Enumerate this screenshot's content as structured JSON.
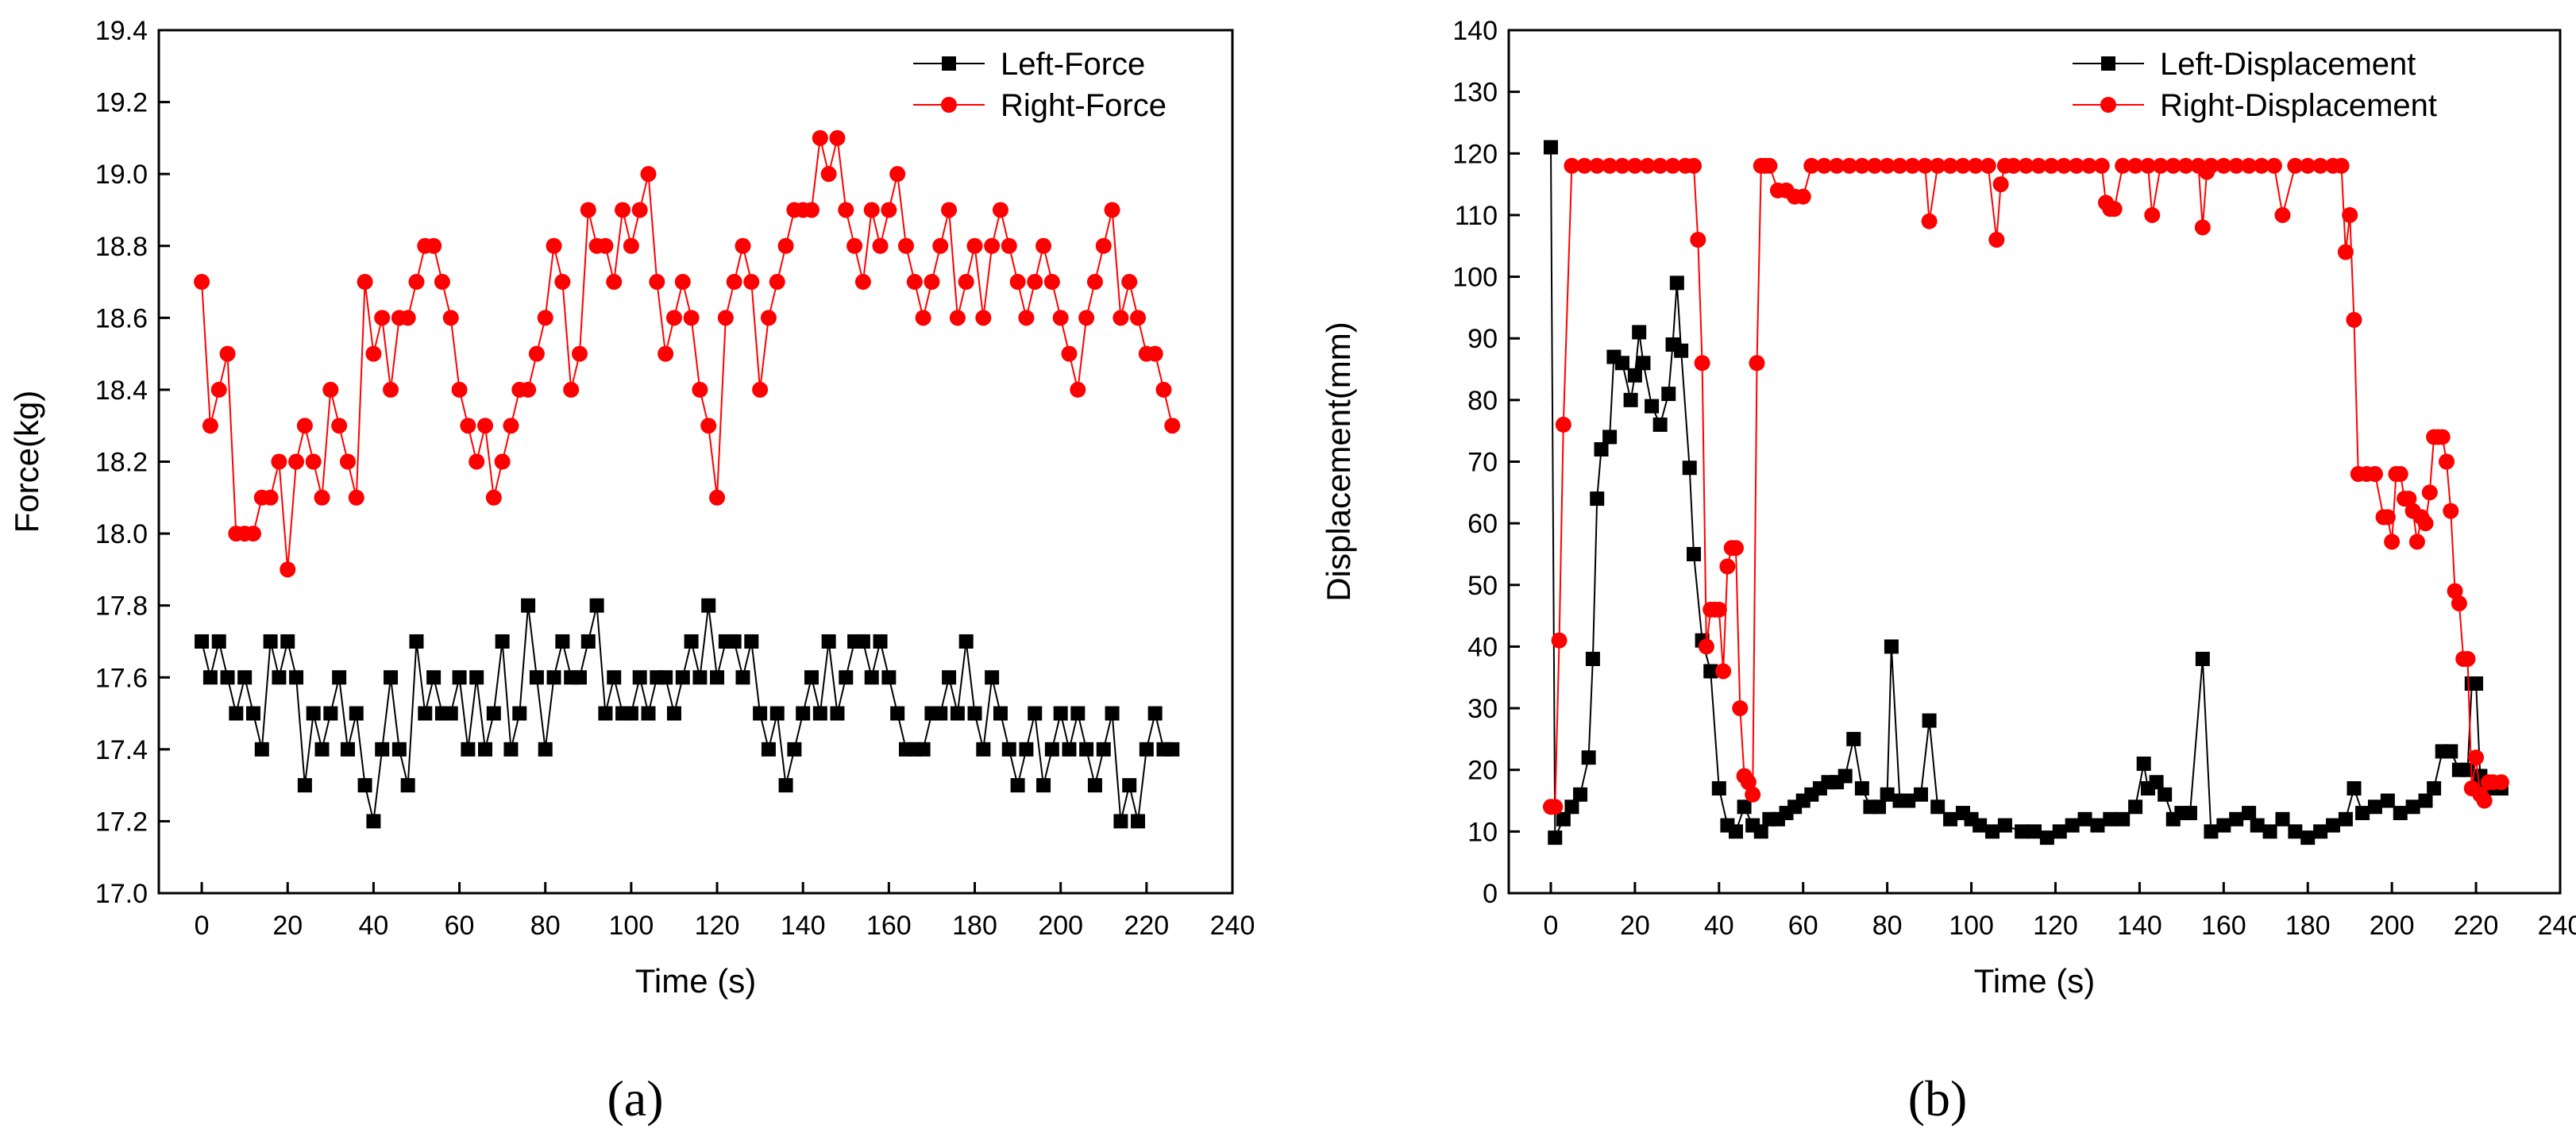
{
  "chart_data": [
    {
      "type": "line",
      "panel_label": "(a)",
      "xlabel": "Time (s)",
      "ylabel": "Force(kg)",
      "xlim": [
        -10,
        240
      ],
      "ylim": [
        17.0,
        19.4
      ],
      "xticks": [
        "0",
        "20",
        "40",
        "60",
        "80",
        "100",
        "120",
        "140",
        "160",
        "180",
        "200",
        "220",
        "240"
      ],
      "yticks": [
        "17.0",
        "17.2",
        "17.4",
        "17.6",
        "17.8",
        "18.0",
        "18.2",
        "18.4",
        "18.6",
        "18.8",
        "19.0",
        "19.2",
        "19.4"
      ],
      "legend_position": "top-right",
      "series": [
        {
          "name": "Left-Force",
          "marker": "square",
          "color": "#000000",
          "x": [
            0,
            2,
            4,
            6,
            8,
            10,
            12,
            14,
            16,
            18,
            20,
            22,
            24,
            26,
            28,
            30,
            32,
            34,
            36,
            38,
            40,
            42,
            44,
            46,
            48,
            50,
            52,
            54,
            56,
            58,
            60,
            62,
            64,
            66,
            68,
            70,
            72,
            74,
            76,
            78,
            80,
            82,
            84,
            86,
            88,
            90,
            92,
            94,
            96,
            98,
            100,
            102,
            104,
            106,
            108,
            110,
            112,
            114,
            116,
            118,
            120,
            122,
            124,
            126,
            128,
            130,
            132,
            134,
            136,
            138,
            140,
            142,
            144,
            146,
            148,
            150,
            152,
            154,
            156,
            158,
            160,
            162,
            164,
            166,
            168,
            170,
            172,
            174,
            176,
            178,
            180,
            182,
            184,
            186,
            188,
            190,
            192,
            194,
            196,
            198,
            200,
            202,
            204,
            206,
            208,
            210,
            212,
            214,
            216,
            218,
            220,
            222,
            224,
            226
          ],
          "y": [
            17.7,
            17.6,
            17.7,
            17.6,
            17.5,
            17.6,
            17.5,
            17.4,
            17.7,
            17.6,
            17.7,
            17.6,
            17.3,
            17.5,
            17.4,
            17.5,
            17.6,
            17.4,
            17.5,
            17.3,
            17.2,
            17.4,
            17.6,
            17.4,
            17.3,
            17.7,
            17.5,
            17.6,
            17.5,
            17.5,
            17.6,
            17.4,
            17.6,
            17.4,
            17.5,
            17.7,
            17.4,
            17.5,
            17.8,
            17.6,
            17.4,
            17.6,
            17.7,
            17.6,
            17.6,
            17.7,
            17.8,
            17.5,
            17.6,
            17.5,
            17.5,
            17.6,
            17.5,
            17.6,
            17.6,
            17.5,
            17.6,
            17.7,
            17.6,
            17.8,
            17.6,
            17.7,
            17.7,
            17.6,
            17.7,
            17.5,
            17.4,
            17.5,
            17.3,
            17.4,
            17.5,
            17.6,
            17.5,
            17.7,
            17.5,
            17.6,
            17.7,
            17.7,
            17.6,
            17.7,
            17.6,
            17.5,
            17.4,
            17.4,
            17.4,
            17.5,
            17.5,
            17.6,
            17.5,
            17.7,
            17.5,
            17.4,
            17.6,
            17.5,
            17.4,
            17.3,
            17.4,
            17.5,
            17.3,
            17.4,
            17.5,
            17.4,
            17.5,
            17.4,
            17.3,
            17.4,
            17.5,
            17.2,
            17.3,
            17.2,
            17.4,
            17.5,
            17.4,
            17.4
          ]
        },
        {
          "name": "Right-Force",
          "marker": "circle",
          "color": "#ff0000",
          "x": [
            0,
            2,
            4,
            6,
            8,
            10,
            12,
            14,
            16,
            18,
            20,
            22,
            24,
            26,
            28,
            30,
            32,
            34,
            36,
            38,
            40,
            42,
            44,
            46,
            48,
            50,
            52,
            54,
            56,
            58,
            60,
            62,
            64,
            66,
            68,
            70,
            72,
            74,
            76,
            78,
            80,
            82,
            84,
            86,
            88,
            90,
            92,
            94,
            96,
            98,
            100,
            102,
            104,
            106,
            108,
            110,
            112,
            114,
            116,
            118,
            120,
            122,
            124,
            126,
            128,
            130,
            132,
            134,
            136,
            138,
            140,
            142,
            144,
            146,
            148,
            150,
            152,
            154,
            156,
            158,
            160,
            162,
            164,
            166,
            168,
            170,
            172,
            174,
            176,
            178,
            180,
            182,
            184,
            186,
            188,
            190,
            192,
            194,
            196,
            198,
            200,
            202,
            204,
            206,
            208,
            210,
            212,
            214,
            216,
            218,
            220,
            222,
            224,
            226
          ],
          "y": [
            18.7,
            18.3,
            18.4,
            18.5,
            18.0,
            18.0,
            18.0,
            18.1,
            18.1,
            18.2,
            17.9,
            18.2,
            18.3,
            18.2,
            18.1,
            18.4,
            18.3,
            18.2,
            18.1,
            18.7,
            18.5,
            18.6,
            18.4,
            18.6,
            18.6,
            18.7,
            18.8,
            18.8,
            18.7,
            18.6,
            18.4,
            18.3,
            18.2,
            18.3,
            18.1,
            18.2,
            18.3,
            18.4,
            18.4,
            18.5,
            18.6,
            18.8,
            18.7,
            18.4,
            18.5,
            18.9,
            18.8,
            18.8,
            18.7,
            18.9,
            18.8,
            18.9,
            19.0,
            18.7,
            18.5,
            18.6,
            18.7,
            18.6,
            18.4,
            18.3,
            18.1,
            18.6,
            18.7,
            18.8,
            18.7,
            18.4,
            18.6,
            18.7,
            18.8,
            18.9,
            18.9,
            18.9,
            19.1,
            19.0,
            19.1,
            18.9,
            18.8,
            18.7,
            18.9,
            18.8,
            18.9,
            19.0,
            18.8,
            18.7,
            18.6,
            18.7,
            18.8,
            18.9,
            18.6,
            18.7,
            18.8,
            18.6,
            18.8,
            18.9,
            18.8,
            18.7,
            18.6,
            18.7,
            18.8,
            18.7,
            18.6,
            18.5,
            18.4,
            18.6,
            18.7,
            18.8,
            18.9,
            18.6,
            18.7,
            18.6,
            18.5,
            18.5,
            18.4,
            18.3
          ]
        }
      ]
    },
    {
      "type": "line",
      "panel_label": "(b)",
      "xlabel": "Time (s)",
      "ylabel": "Displacement(mm)",
      "xlim": [
        -10,
        240
      ],
      "ylim": [
        0,
        140
      ],
      "xticks": [
        "0",
        "20",
        "40",
        "60",
        "80",
        "100",
        "120",
        "140",
        "160",
        "180",
        "200",
        "220",
        "240"
      ],
      "yticks": [
        "0",
        "10",
        "20",
        "30",
        "40",
        "50",
        "60",
        "70",
        "80",
        "90",
        "100",
        "110",
        "120",
        "130",
        "140"
      ],
      "legend_position": "top-right",
      "series": [
        {
          "name": "Left-Displacement",
          "marker": "square",
          "color": "#000000",
          "x": [
            0,
            1,
            3,
            5,
            7,
            9,
            10,
            11,
            12,
            14,
            15,
            17,
            19,
            20,
            21,
            22,
            24,
            26,
            28,
            29,
            30,
            31,
            33,
            34,
            36,
            38,
            40,
            42,
            44,
            46,
            48,
            50,
            52,
            54,
            56,
            58,
            60,
            62,
            64,
            66,
            68,
            70,
            72,
            74,
            76,
            78,
            80,
            81,
            83,
            85,
            88,
            90,
            92,
            95,
            98,
            100,
            102,
            105,
            108,
            112,
            115,
            118,
            121,
            124,
            127,
            130,
            133,
            136,
            139,
            141,
            142,
            144,
            146,
            148,
            150,
            152,
            155,
            157,
            160,
            163,
            166,
            168,
            171,
            174,
            177,
            180,
            183,
            186,
            189,
            191,
            193,
            196,
            199,
            202,
            205,
            208,
            210,
            212,
            214,
            216,
            218,
            219,
            220,
            221,
            222,
            224,
            226
          ],
          "x_note": "",
          "y": [
            121,
            9,
            12,
            14,
            16,
            22,
            38,
            64,
            72,
            74,
            87,
            86,
            80,
            84,
            91,
            86,
            79,
            76,
            81,
            89,
            99,
            88,
            69,
            55,
            41,
            36,
            17,
            11,
            10,
            14,
            11,
            10,
            12,
            12,
            13,
            14,
            15,
            16,
            17,
            18,
            18,
            19,
            25,
            17,
            14,
            14,
            16,
            40,
            15,
            15,
            16,
            28,
            14,
            12,
            13,
            12,
            11,
            10,
            11,
            10,
            10,
            9,
            10,
            11,
            12,
            11,
            12,
            12,
            14,
            21,
            17,
            18,
            16,
            12,
            13,
            13,
            38,
            10,
            11,
            12,
            13,
            11,
            10,
            12,
            10,
            9,
            10,
            11,
            12,
            17,
            13,
            14,
            15,
            13,
            14,
            15,
            17,
            23,
            23,
            20,
            20,
            34,
            34,
            19,
            18,
            17,
            17
          ]
        },
        {
          "name": "Right-Displacement",
          "marker": "circle",
          "color": "#ff0000",
          "x": [
            0,
            1,
            2,
            3,
            5,
            8,
            11,
            14,
            17,
            20,
            23,
            26,
            29,
            32,
            34,
            35,
            36,
            37,
            38,
            39,
            40,
            41,
            42,
            43,
            44,
            45,
            46,
            47,
            48,
            49,
            50,
            51,
            52,
            54,
            56,
            58,
            60,
            62,
            65,
            68,
            71,
            74,
            77,
            80,
            83,
            86,
            89,
            90,
            92,
            95,
            98,
            101,
            104,
            106,
            107,
            108,
            110,
            113,
            116,
            119,
            122,
            125,
            128,
            131,
            132,
            133,
            134,
            136,
            139,
            142,
            143,
            145,
            148,
            151,
            154,
            155,
            156,
            157,
            160,
            163,
            166,
            169,
            172,
            174,
            177,
            180,
            183,
            186,
            188,
            189,
            190,
            191,
            192,
            194,
            196,
            198,
            199,
            200,
            201,
            202,
            203,
            204,
            205,
            206,
            207,
            208,
            209,
            210,
            211,
            212,
            213,
            214,
            215,
            216,
            217,
            218,
            219,
            220,
            221,
            222,
            223,
            224,
            226
          ],
          "y": [
            14,
            14,
            41,
            76,
            118,
            118,
            118,
            118,
            118,
            118,
            118,
            118,
            118,
            118,
            118,
            106,
            86,
            40,
            46,
            46,
            46,
            36,
            53,
            56,
            56,
            30,
            19,
            18,
            16,
            86,
            118,
            118,
            118,
            114,
            114,
            113,
            113,
            118,
            118,
            118,
            118,
            118,
            118,
            118,
            118,
            118,
            118,
            109,
            118,
            118,
            118,
            118,
            118,
            106,
            115,
            118,
            118,
            118,
            118,
            118,
            118,
            118,
            118,
            118,
            112,
            111,
            111,
            118,
            118,
            118,
            110,
            118,
            118,
            118,
            118,
            108,
            117,
            118,
            118,
            118,
            118,
            118,
            118,
            110,
            118,
            118,
            118,
            118,
            118,
            104,
            110,
            93,
            68,
            68,
            68,
            61,
            61,
            57,
            68,
            68,
            64,
            64,
            62,
            57,
            61,
            60,
            65,
            74,
            74,
            74,
            70,
            62,
            49,
            47,
            38,
            38,
            17,
            22,
            16,
            15,
            18,
            18,
            18
          ]
        }
      ]
    }
  ]
}
